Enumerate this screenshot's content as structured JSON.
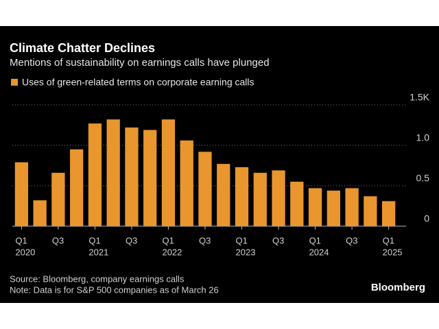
{
  "chart_data": {
    "type": "bar",
    "title": "Climate Chatter Declines",
    "subtitle": "Mentions of sustainability on earnings calls have plunged",
    "legend": "Uses of green-related terms on corporate earning calls",
    "source": "Source: Bloomberg, company earnings calls",
    "note": "Note: Data is for S&P 500 companies as of March 26",
    "brand": "Bloomberg",
    "categories": [
      "Q1",
      null,
      "Q3",
      null,
      "Q1",
      null,
      "Q3",
      null,
      "Q1",
      null,
      "Q3",
      null,
      "Q1",
      null,
      "Q3",
      null,
      "Q1",
      null,
      "Q3",
      null,
      "Q1"
    ],
    "year_labels": [
      "2020",
      null,
      null,
      null,
      "2021",
      null,
      null,
      null,
      "2022",
      null,
      null,
      null,
      "2023",
      null,
      null,
      null,
      "2024",
      null,
      null,
      null,
      "2025"
    ],
    "values": [
      0.79,
      0.32,
      0.66,
      0.95,
      1.27,
      1.32,
      1.22,
      1.19,
      1.32,
      1.06,
      0.92,
      0.77,
      0.73,
      0.66,
      0.69,
      0.55,
      0.47,
      0.44,
      0.47,
      0.37,
      0.31
    ],
    "color": "#e8962d",
    "ylim": [
      0,
      1.5
    ],
    "yticks": [
      0,
      0.5,
      {
        "value": 1,
        "label": "1.0"
      },
      {
        "value": 1.5,
        "label": "1.5K"
      }
    ],
    "grid": true
  }
}
